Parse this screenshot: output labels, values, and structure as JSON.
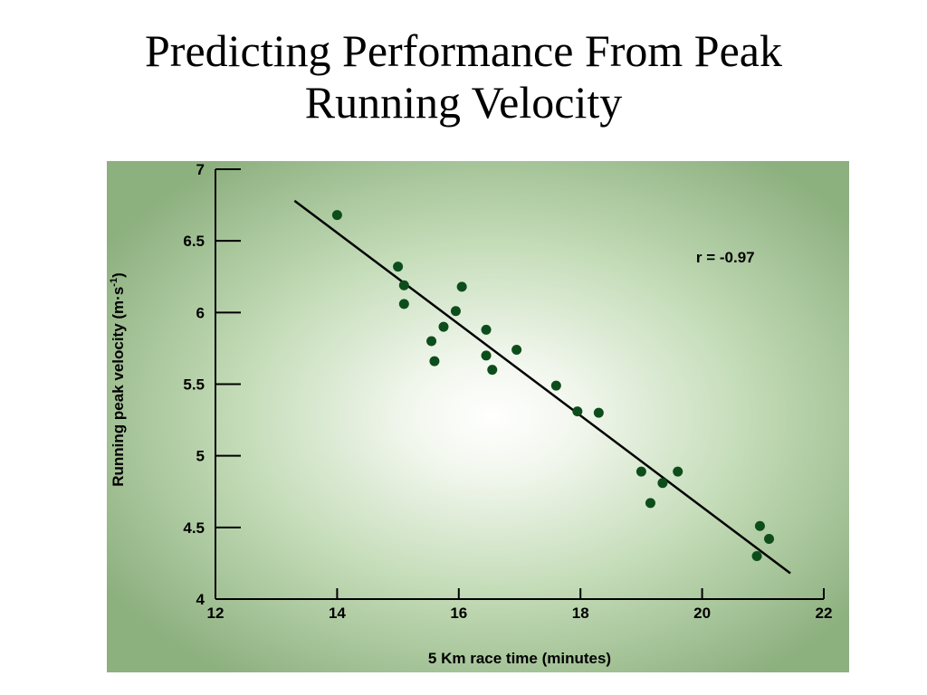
{
  "slide": {
    "title_line1": "Predicting Performance From Peak",
    "title_line2": "Running Velocity"
  },
  "chart_data": {
    "type": "scatter",
    "xlabel": "5 Km race time (minutes)",
    "ylabel_main": "Running peak velocity (m·s",
    "ylabel_sup": "-1",
    "ylabel_close": ")",
    "annotation": "r = -0.97",
    "xlim": [
      12,
      22
    ],
    "ylim": [
      4,
      7
    ],
    "x_ticks": [
      12,
      14,
      16,
      18,
      20,
      22
    ],
    "y_ticks": [
      4,
      4.5,
      5,
      5.5,
      6,
      6.5,
      7
    ],
    "grid": false,
    "colors": {
      "point": "#0d4d1c",
      "line": "#000000",
      "background_edge": "#8db07f",
      "background_center": "#ffffff"
    },
    "series": [
      {
        "points": [
          {
            "x": 14.0,
            "y": 6.68
          },
          {
            "x": 15.0,
            "y": 6.32
          },
          {
            "x": 15.1,
            "y": 6.19
          },
          {
            "x": 15.1,
            "y": 6.06
          },
          {
            "x": 16.05,
            "y": 6.18
          },
          {
            "x": 15.95,
            "y": 6.01
          },
          {
            "x": 15.75,
            "y": 5.9
          },
          {
            "x": 15.55,
            "y": 5.8
          },
          {
            "x": 15.6,
            "y": 5.66
          },
          {
            "x": 16.45,
            "y": 5.88
          },
          {
            "x": 16.45,
            "y": 5.7
          },
          {
            "x": 16.55,
            "y": 5.6
          },
          {
            "x": 16.95,
            "y": 5.74
          },
          {
            "x": 17.6,
            "y": 5.49
          },
          {
            "x": 17.95,
            "y": 5.31
          },
          {
            "x": 18.3,
            "y": 5.3
          },
          {
            "x": 19.0,
            "y": 4.89
          },
          {
            "x": 19.6,
            "y": 4.89
          },
          {
            "x": 19.35,
            "y": 4.81
          },
          {
            "x": 19.15,
            "y": 4.67
          },
          {
            "x": 20.95,
            "y": 4.51
          },
          {
            "x": 21.1,
            "y": 4.42
          },
          {
            "x": 20.9,
            "y": 4.3
          }
        ]
      }
    ],
    "fit_line": {
      "x": [
        13.3,
        21.45
      ],
      "y": [
        6.78,
        4.18
      ]
    }
  }
}
